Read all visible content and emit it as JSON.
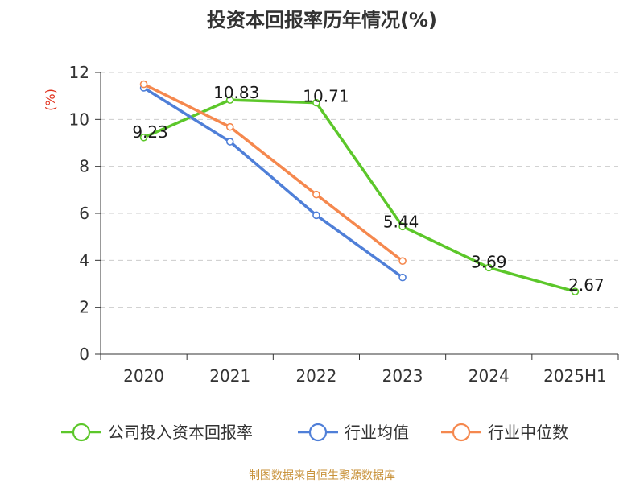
{
  "chart_data": {
    "type": "line",
    "title": "投资本回报率历年情况(%)",
    "ylabel": "(%)",
    "categories": [
      "2020",
      "2021",
      "2022",
      "2023",
      "2024",
      "2025H1"
    ],
    "ylim": [
      0,
      12
    ],
    "yticks": [
      0,
      2,
      4,
      6,
      8,
      10,
      12
    ],
    "grid": true,
    "legend_position": "bottom",
    "series": [
      {
        "name": "公司投入资本回报率",
        "color": "#5cc72a",
        "values": [
          9.23,
          10.83,
          10.71,
          5.44,
          3.69,
          2.67
        ],
        "labels": [
          "9.23",
          "10.83",
          "10.71",
          "5.44",
          "3.69",
          "2.67"
        ]
      },
      {
        "name": "行业均值",
        "color": "#4f7fd8",
        "values": [
          11.35,
          9.05,
          5.92,
          3.27,
          null,
          null
        ]
      },
      {
        "name": "行业中位数",
        "color": "#f5884e",
        "values": [
          11.5,
          9.68,
          6.8,
          3.97,
          null,
          null
        ]
      }
    ]
  },
  "source": "制图数据来自恒生聚源数据库"
}
